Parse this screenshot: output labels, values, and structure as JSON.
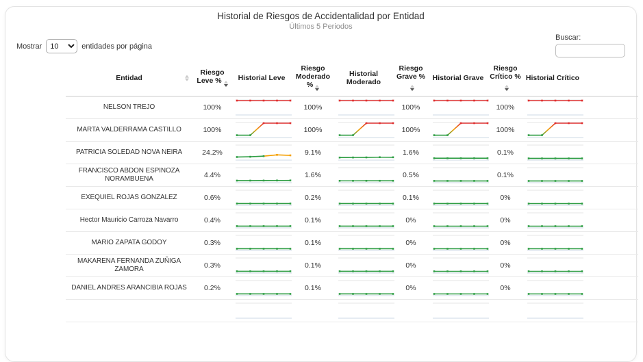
{
  "header": {
    "title": "Historial de Riesgos de Accidentalidad por Entidad",
    "subtitle": "Últimos 5 Periodos"
  },
  "controls": {
    "show_prefix": "Mostrar",
    "page_size": "10",
    "show_suffix": "entidades por página",
    "search_label": "Buscar:",
    "search_value": ""
  },
  "colors": {
    "red": "#e03131",
    "orange": "#f59f00",
    "green": "#2f9e44",
    "grid_top": "#e4e4e4",
    "grid_bottom": "#ccd9e6"
  },
  "table": {
    "columns": [
      "Entidad",
      "Riesgo Leve %",
      "Historial Leve",
      "Riesgo Moderado %",
      "Historial Moderado",
      "Riesgo Grave %",
      "Historial Grave",
      "Riesgo Crítico %",
      "Historial Crítico"
    ],
    "sparkline": {
      "periods": 5,
      "scale_min": 0,
      "scale_max": 100
    },
    "rows": [
      {
        "entidad": "NELSON TREJO",
        "leve": {
          "value": "100%",
          "history": [
            100,
            100,
            100,
            100,
            100
          ]
        },
        "moderado": {
          "value": "100%",
          "history": [
            100,
            100,
            100,
            100,
            100
          ]
        },
        "grave": {
          "value": "100%",
          "history": [
            100,
            100,
            100,
            100,
            100
          ]
        },
        "critico": {
          "value": "100%",
          "history": [
            100,
            100,
            100,
            100,
            100
          ]
        }
      },
      {
        "entidad": "MARTA VALDERRAMA CASTILLO",
        "leve": {
          "value": "100%",
          "history": [
            5,
            5,
            100,
            100,
            100
          ]
        },
        "moderado": {
          "value": "100%",
          "history": [
            5,
            5,
            100,
            100,
            100
          ]
        },
        "grave": {
          "value": "100%",
          "history": [
            5,
            5,
            100,
            100,
            100
          ]
        },
        "critico": {
          "value": "100%",
          "history": [
            5,
            5,
            100,
            100,
            100
          ]
        }
      },
      {
        "entidad": "PATRICIA SOLEDAD NOVA NEIRA",
        "leve": {
          "value": "24.2%",
          "history": [
            11,
            13,
            18,
            28,
            24.2
          ]
        },
        "moderado": {
          "value": "9.1%",
          "history": [
            7,
            7.5,
            8,
            9.5,
            9.1
          ]
        },
        "grave": {
          "value": "1.6%",
          "history": [
            1.5,
            1.5,
            1.6,
            1.7,
            1.6
          ]
        },
        "critico": {
          "value": "0.1%",
          "history": [
            0.1,
            0.1,
            0.1,
            0.1,
            0.1
          ]
        }
      },
      {
        "entidad": "FRANCISCO ABDON ESPINOZA NORAMBUENA",
        "leve": {
          "value": "4.4%",
          "history": [
            3,
            3.2,
            3.6,
            4,
            4.4
          ]
        },
        "moderado": {
          "value": "1.6%",
          "history": [
            1.4,
            1.4,
            1.5,
            1.6,
            1.6
          ]
        },
        "grave": {
          "value": "0.5%",
          "history": [
            0.5,
            0.5,
            0.5,
            0.5,
            0.5
          ]
        },
        "critico": {
          "value": "0.1%",
          "history": [
            0.1,
            0.1,
            0.1,
            0.1,
            0.1
          ]
        }
      },
      {
        "entidad": "EXEQUIEL ROJAS GONZALEZ",
        "leve": {
          "value": "0.6%",
          "history": [
            0.6,
            0.6,
            0.6,
            0.6,
            0.6
          ]
        },
        "moderado": {
          "value": "0.2%",
          "history": [
            0.2,
            0.2,
            0.2,
            0.2,
            0.2
          ]
        },
        "grave": {
          "value": "0.1%",
          "history": [
            0.1,
            0.1,
            0.1,
            0.1,
            0.1
          ]
        },
        "critico": {
          "value": "0%",
          "history": [
            0,
            0,
            0,
            0,
            0
          ]
        }
      },
      {
        "entidad": "Hector Mauricio Carroza Navarro",
        "leve": {
          "value": "0.4%",
          "history": [
            0.4,
            0.4,
            0.4,
            0.4,
            0.4
          ]
        },
        "moderado": {
          "value": "0.1%",
          "history": [
            0.1,
            0.1,
            0.1,
            0.1,
            0.1
          ]
        },
        "grave": {
          "value": "0%",
          "history": [
            0,
            0,
            0,
            0,
            0
          ]
        },
        "critico": {
          "value": "0%",
          "history": [
            0,
            0,
            0,
            0,
            0
          ]
        }
      },
      {
        "entidad": "MARIO ZAPATA GODOY",
        "leve": {
          "value": "0.3%",
          "history": [
            0.3,
            0.3,
            0.3,
            0.3,
            0.3
          ]
        },
        "moderado": {
          "value": "0.1%",
          "history": [
            0.1,
            0.1,
            0.1,
            0.1,
            0.1
          ]
        },
        "grave": {
          "value": "0%",
          "history": [
            0,
            0,
            0,
            0,
            0
          ]
        },
        "critico": {
          "value": "0%",
          "history": [
            0,
            0,
            0,
            0,
            0
          ]
        }
      },
      {
        "entidad": "MAKARENA FERNANDA ZUÑIGA ZAMORA",
        "leve": {
          "value": "0.3%",
          "history": [
            0.3,
            0.3,
            0.3,
            0.3,
            0.3
          ]
        },
        "moderado": {
          "value": "0.1%",
          "history": [
            0.1,
            0.1,
            0.1,
            0.1,
            0.1
          ]
        },
        "grave": {
          "value": "0%",
          "history": [
            0,
            0,
            0,
            0,
            0
          ]
        },
        "critico": {
          "value": "0%",
          "history": [
            0,
            0,
            0,
            0,
            0
          ]
        }
      },
      {
        "entidad": "DANIEL ANDRES ARANCIBIA ROJAS",
        "leve": {
          "value": "0.2%",
          "history": [
            0.2,
            0.2,
            0.2,
            0.2,
            0.2
          ]
        },
        "moderado": {
          "value": "0.1%",
          "history": [
            0.1,
            0.1,
            0.1,
            0.1,
            0.1
          ]
        },
        "grave": {
          "value": "0%",
          "history": [
            0,
            0,
            0,
            0,
            0
          ]
        },
        "critico": {
          "value": "0%",
          "history": [
            0,
            0,
            0,
            0,
            0
          ]
        }
      },
      {
        "entidad": "",
        "leve": {
          "value": "",
          "history": null
        },
        "moderado": {
          "value": "",
          "history": null
        },
        "grave": {
          "value": "",
          "history": null
        },
        "critico": {
          "value": "",
          "history": null
        }
      }
    ]
  }
}
